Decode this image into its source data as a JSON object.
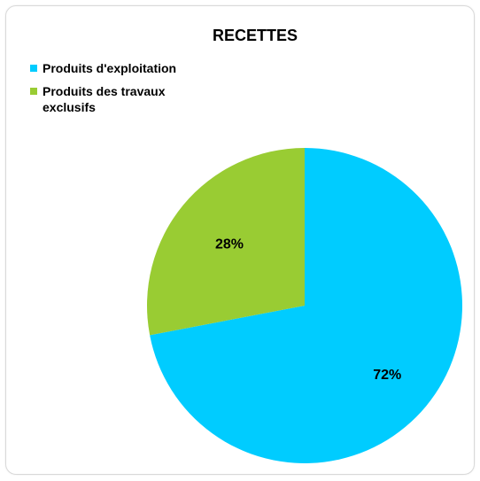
{
  "chart_data": {
    "type": "pie",
    "title": "RECETTES",
    "categories": [
      "Produits d'exploitation",
      "Produits des travaux exclusifs"
    ],
    "values": [
      72,
      28
    ],
    "labels": [
      "72%",
      "28%"
    ],
    "colors": [
      "#00CCFF",
      "#99CC33"
    ],
    "legend_position": "top-left"
  }
}
